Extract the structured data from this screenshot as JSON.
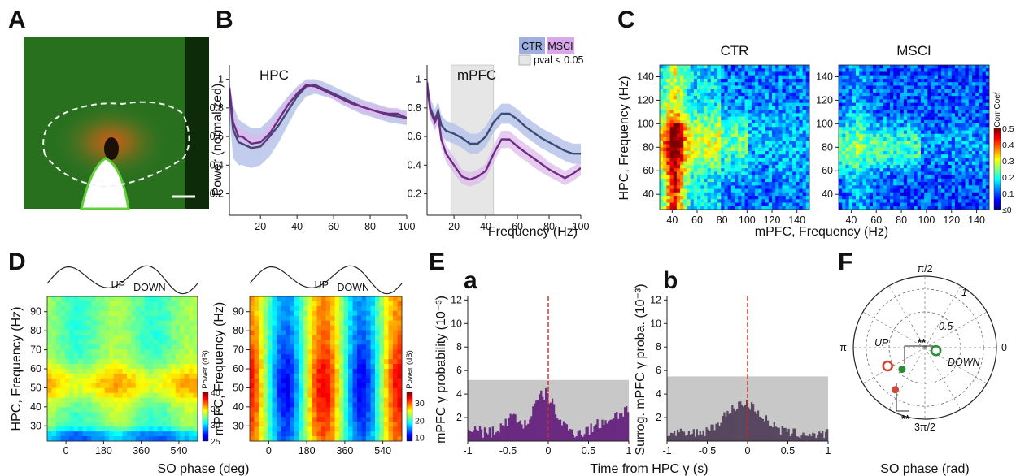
{
  "panels": {
    "A": {
      "label": "A"
    },
    "B": {
      "label": "B"
    },
    "C": {
      "label": "C"
    },
    "D": {
      "label": "D"
    },
    "E": {
      "label": "E",
      "sub_a": "a",
      "sub_b": "b"
    },
    "F": {
      "label": "F"
    }
  },
  "colors": {
    "ctr": "#6f83c6",
    "ctr_band": "#b7c4ea",
    "msci": "#8d3aa3",
    "msci_band": "#dcb8ea",
    "sig": "#e6e6e6",
    "hist_a": "#6a2a82",
    "hist_b": "#57475f",
    "gray_band": "#c8c8c8",
    "red_dash": "#e0241c"
  },
  "chart_data": [
    {
      "id": "B-HPC",
      "type": "line",
      "title": "HPC",
      "ylabel": "Power (normalized)",
      "xlabel": "",
      "xlim": [
        3,
        100
      ],
      "ylim": [
        0.05,
        1.1
      ],
      "xticks": [
        "20",
        "40",
        "60",
        "80",
        "100"
      ],
      "yticks": [
        "0.2",
        "0.4",
        "0.6",
        "0.8",
        "1"
      ],
      "x": [
        3,
        5,
        8,
        10,
        15,
        20,
        25,
        30,
        35,
        40,
        45,
        50,
        55,
        60,
        65,
        70,
        75,
        80,
        85,
        90,
        95,
        100
      ],
      "series": [
        {
          "name": "CTR",
          "values": [
            0.92,
            0.65,
            0.56,
            0.55,
            0.52,
            0.53,
            0.6,
            0.68,
            0.78,
            0.88,
            0.95,
            0.96,
            0.93,
            0.9,
            0.87,
            0.84,
            0.81,
            0.79,
            0.77,
            0.75,
            0.74,
            0.73
          ],
          "lower": [
            0.75,
            0.45,
            0.4,
            0.4,
            0.38,
            0.4,
            0.46,
            0.56,
            0.68,
            0.8,
            0.88,
            0.9,
            0.88,
            0.86,
            0.82,
            0.79,
            0.76,
            0.74,
            0.72,
            0.7,
            0.69,
            0.68
          ],
          "upper": [
            1.0,
            0.82,
            0.72,
            0.7,
            0.66,
            0.66,
            0.72,
            0.8,
            0.88,
            0.95,
            1.0,
            1.0,
            0.98,
            0.95,
            0.92,
            0.89,
            0.86,
            0.84,
            0.82,
            0.8,
            0.79,
            0.78
          ]
        },
        {
          "name": "MSCI",
          "values": [
            0.94,
            0.7,
            0.6,
            0.6,
            0.55,
            0.56,
            0.62,
            0.72,
            0.82,
            0.9,
            0.96,
            0.95,
            0.92,
            0.89,
            0.86,
            0.83,
            0.81,
            0.79,
            0.77,
            0.76,
            0.76,
            0.73
          ],
          "lower": [
            0.85,
            0.62,
            0.54,
            0.54,
            0.5,
            0.51,
            0.56,
            0.66,
            0.77,
            0.86,
            0.93,
            0.92,
            0.89,
            0.86,
            0.83,
            0.8,
            0.77,
            0.75,
            0.73,
            0.72,
            0.72,
            0.69
          ],
          "upper": [
            1.0,
            0.8,
            0.66,
            0.66,
            0.61,
            0.62,
            0.68,
            0.78,
            0.87,
            0.94,
            0.99,
            0.98,
            0.95,
            0.92,
            0.89,
            0.86,
            0.85,
            0.83,
            0.81,
            0.8,
            0.8,
            0.77
          ]
        }
      ]
    },
    {
      "id": "B-mPFC",
      "type": "line",
      "title": "mPFC",
      "xlabel": "Frequency (Hz)",
      "xlim": [
        3,
        100
      ],
      "ylim": [
        0.05,
        1.1
      ],
      "sig_region": [
        18,
        45
      ],
      "xticks": [
        "20",
        "40",
        "60",
        "80",
        "100"
      ],
      "yticks": [
        "0.2",
        "0.4",
        "0.6",
        "0.8",
        "1"
      ],
      "legend": [
        "CTR",
        "MSCI",
        "pval < 0.05"
      ],
      "x": [
        3,
        5,
        8,
        10,
        12,
        15,
        20,
        25,
        30,
        35,
        40,
        45,
        50,
        55,
        60,
        65,
        70,
        75,
        80,
        85,
        90,
        95,
        100
      ],
      "series": [
        {
          "name": "CTR",
          "values": [
            0.95,
            0.8,
            0.72,
            0.78,
            0.68,
            0.64,
            0.62,
            0.59,
            0.55,
            0.55,
            0.6,
            0.7,
            0.76,
            0.76,
            0.72,
            0.67,
            0.63,
            0.59,
            0.56,
            0.53,
            0.5,
            0.48,
            0.48
          ],
          "lower": [
            0.88,
            0.73,
            0.65,
            0.71,
            0.61,
            0.57,
            0.55,
            0.52,
            0.48,
            0.48,
            0.53,
            0.63,
            0.69,
            0.69,
            0.65,
            0.6,
            0.56,
            0.52,
            0.49,
            0.46,
            0.43,
            0.41,
            0.41
          ],
          "upper": [
            1.02,
            0.87,
            0.79,
            0.85,
            0.75,
            0.71,
            0.69,
            0.66,
            0.62,
            0.62,
            0.67,
            0.77,
            0.83,
            0.83,
            0.79,
            0.74,
            0.7,
            0.66,
            0.63,
            0.6,
            0.57,
            0.55,
            0.55
          ]
        },
        {
          "name": "MSCI",
          "values": [
            0.98,
            0.78,
            0.7,
            0.75,
            0.58,
            0.48,
            0.4,
            0.32,
            0.3,
            0.32,
            0.36,
            0.48,
            0.58,
            0.58,
            0.53,
            0.49,
            0.45,
            0.41,
            0.37,
            0.34,
            0.31,
            0.34,
            0.38
          ],
          "lower": [
            0.92,
            0.72,
            0.64,
            0.69,
            0.52,
            0.42,
            0.34,
            0.27,
            0.25,
            0.27,
            0.31,
            0.42,
            0.52,
            0.52,
            0.47,
            0.43,
            0.39,
            0.35,
            0.32,
            0.29,
            0.26,
            0.29,
            0.33
          ],
          "upper": [
            1.04,
            0.84,
            0.76,
            0.81,
            0.64,
            0.54,
            0.46,
            0.37,
            0.35,
            0.37,
            0.41,
            0.54,
            0.64,
            0.64,
            0.59,
            0.55,
            0.51,
            0.47,
            0.42,
            0.39,
            0.36,
            0.39,
            0.43
          ]
        }
      ]
    },
    {
      "id": "C",
      "type": "heatmap",
      "titles": [
        "CTR",
        "MSCI"
      ],
      "xlabel": "mPFC, Frequency (Hz)",
      "ylabel": "HPC, Frequency (Hz)",
      "xlim": [
        30,
        150
      ],
      "ylim": [
        27,
        150
      ],
      "xticks": [
        "40",
        "60",
        "80",
        "100",
        "120",
        "140"
      ],
      "yticks": [
        "40",
        "60",
        "80",
        "100",
        "120",
        "140"
      ],
      "colorbar": {
        "label": "Corr Coef",
        "ticks": [
          "0.5",
          "0.4",
          "0.3",
          "0.2",
          "0.1",
          "≤0"
        ],
        "range": [
          0,
          0.5
        ]
      },
      "description_of_pattern": []
    },
    {
      "id": "D",
      "type": "heatmap",
      "xlabel": "SO phase (deg)",
      "ylabels": [
        "HPC, Frequency (Hz)",
        "mPFC, Frequency (Hz)"
      ],
      "xticks": [
        "0",
        "180",
        "360",
        "540"
      ],
      "xlim": [
        -90,
        630
      ],
      "yticks": [
        "30",
        "40",
        "50",
        "60",
        "70",
        "80",
        "90"
      ],
      "ylim": [
        22,
        98
      ],
      "so_labels": [
        "UP",
        "DOWN"
      ],
      "colorbars": [
        {
          "label": "Power (dB)",
          "ticks": [
            "40",
            "35",
            "30",
            "25"
          ],
          "range": [
            25,
            40
          ]
        },
        {
          "label": "Power (dB)",
          "ticks": [
            "30",
            "20",
            "10"
          ],
          "range": [
            8,
            36
          ]
        }
      ]
    },
    {
      "id": "E-a",
      "type": "bar",
      "ylabel": "mPFC γ probability (10⁻³)",
      "xlim": [
        -1,
        1
      ],
      "ylim": [
        0,
        12.3
      ],
      "threshold": 5.2,
      "xticks": [
        "-1",
        "-0.5",
        "0",
        "0.5",
        "1"
      ],
      "yticks": [
        "2",
        "4",
        "6",
        "8",
        "10",
        "12"
      ]
    },
    {
      "id": "E-b",
      "type": "bar",
      "ylabel": "Surrog. mPFC γ proba. (10⁻³)",
      "xlim": [
        -1,
        1
      ],
      "ylim": [
        0,
        12.3
      ],
      "threshold": 5.5,
      "xticks": [
        "-1",
        "-0.5",
        "0",
        "0.5",
        "1"
      ],
      "yticks": [
        "2",
        "4",
        "6",
        "8",
        "10",
        "12"
      ]
    },
    {
      "id": "E-x",
      "xlabel": "Time from HPC γ (s)"
    },
    {
      "id": "F",
      "type": "scatter",
      "xlabel": "SO phase (rad)",
      "angle_labels": [
        "π/2",
        "π",
        "0",
        "3π/2"
      ],
      "radius_labels": [
        "0.5",
        "1"
      ],
      "region_labels": [
        "UP",
        "DOWN"
      ],
      "sig_labels": [
        "**",
        "**"
      ],
      "points": [
        {
          "color": "#2e8b3a",
          "style": "open",
          "angle_rad": 6.02,
          "r": 0.16
        },
        {
          "color": "#2e8b3a",
          "style": "filled",
          "angle_rad": 3.9,
          "r": 0.44
        },
        {
          "color": "#cc4a3a",
          "style": "open",
          "angle_rad": 3.6,
          "r": 0.58
        },
        {
          "color": "#cc4a3a",
          "style": "filled",
          "angle_rad": 4.1,
          "r": 0.72
        }
      ]
    }
  ]
}
